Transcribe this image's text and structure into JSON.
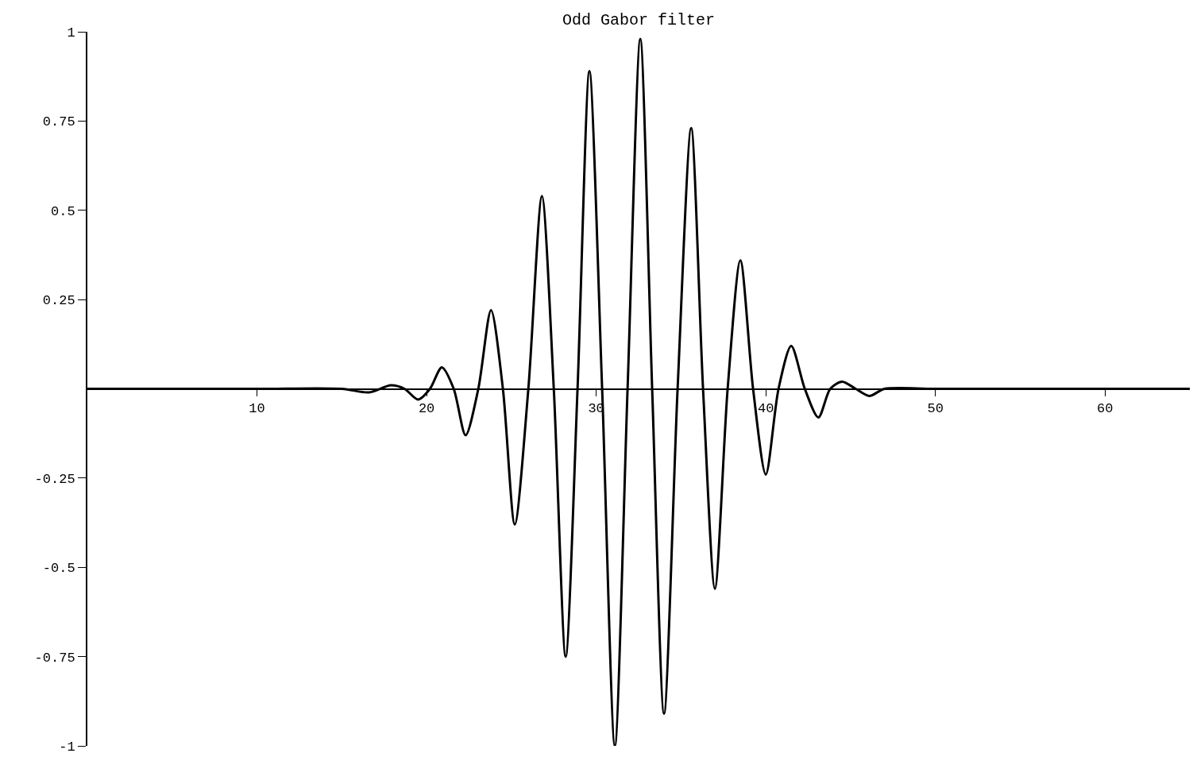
{
  "chart_data": {
    "type": "line",
    "title": "Odd Gabor filter",
    "x": [
      0,
      10,
      15,
      16.6,
      17.9,
      18.7,
      19.5,
      20.2,
      20.9,
      21.6,
      22.3,
      23.05,
      23.8,
      24.5,
      25.2,
      26.0,
      26.8,
      27.5,
      28.2,
      28.9,
      29.6,
      30.35,
      31.1,
      31.85,
      32.6,
      33.3,
      34.0,
      34.8,
      35.6,
      36.3,
      37.0,
      37.75,
      38.5,
      39.25,
      40.0,
      40.75,
      41.5,
      42.3,
      43.1,
      43.8,
      44.5,
      45.3,
      46.1,
      47,
      50,
      60,
      65
    ],
    "series": [
      {
        "color": "#000000",
        "values": [
          0,
          0,
          0,
          -0.01,
          0.01,
          0,
          -0.03,
          0,
          0.06,
          0,
          -0.13,
          0,
          0.22,
          0,
          -0.38,
          0,
          0.54,
          0,
          -0.75,
          0,
          0.89,
          0,
          -1.0,
          0,
          0.98,
          0,
          -0.91,
          0,
          0.73,
          0,
          -0.56,
          0,
          0.36,
          0,
          -0.24,
          0,
          0.12,
          0,
          -0.08,
          0,
          0.02,
          0,
          -0.02,
          0,
          0,
          0,
          0
        ]
      }
    ],
    "xlim": [
      0,
      65
    ],
    "ylim": [
      -1,
      1
    ],
    "xticks": [
      10,
      20,
      30,
      40,
      50,
      60
    ],
    "yticks": [
      -1,
      -0.75,
      -0.5,
      -0.25,
      0.25,
      0.5,
      0.75,
      1
    ],
    "marker": "none",
    "line_style": "solid"
  }
}
